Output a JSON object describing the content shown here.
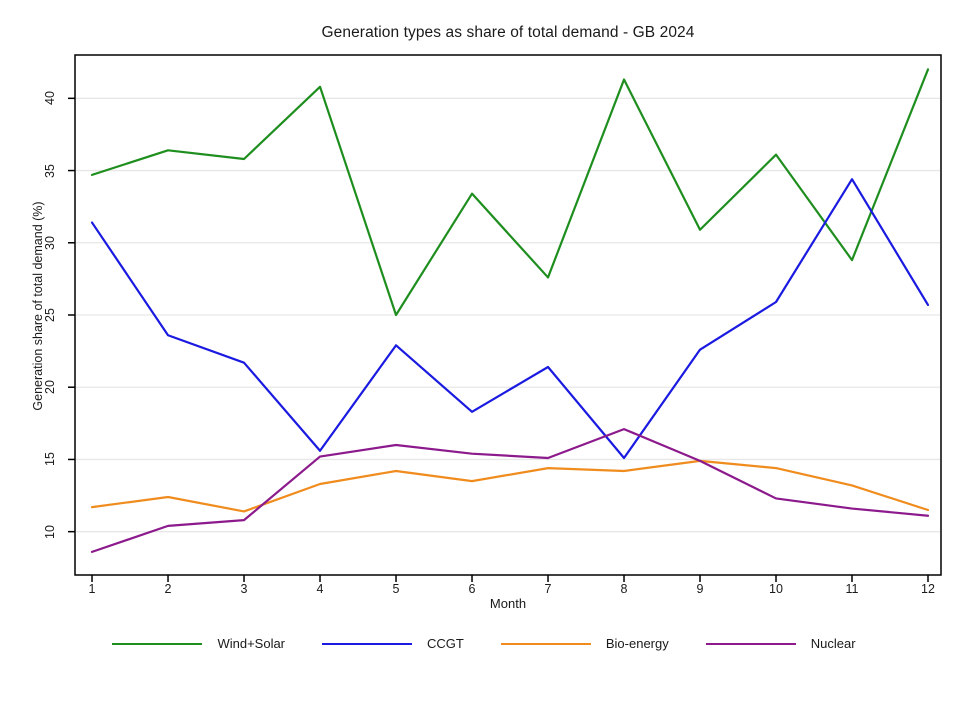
{
  "chart_data": {
    "type": "line",
    "title": "Generation types as share of total demand - GB 2024",
    "xlabel": "Month",
    "ylabel": "Generation share of total demand (%)",
    "x": [
      1,
      2,
      3,
      4,
      5,
      6,
      7,
      8,
      9,
      10,
      11,
      12
    ],
    "xticks": [
      "1",
      "2",
      "3",
      "4",
      "5",
      "6",
      "7",
      "8",
      "9",
      "10",
      "11",
      "12"
    ],
    "yticks": [
      "10",
      "15",
      "20",
      "25",
      "30",
      "35",
      "40"
    ],
    "ytick_values": [
      10,
      15,
      20,
      25,
      30,
      35,
      40
    ],
    "xlim": [
      0.776,
      12.171
    ],
    "ylim": [
      7.0,
      43.0
    ],
    "grid": "horizontal",
    "gridline_color": "#e7e7e7",
    "border_color": "#000000",
    "legend_position": "bottom",
    "series": [
      {
        "name": "Wind+Solar",
        "color": "#1e8e1e",
        "values": [
          34.7,
          36.4,
          35.8,
          40.8,
          25.0,
          33.4,
          27.6,
          41.3,
          30.9,
          36.1,
          28.8,
          42.0
        ]
      },
      {
        "name": "CCGT",
        "color": "#1a1ae0",
        "values": [
          31.4,
          23.6,
          21.7,
          15.6,
          22.9,
          18.3,
          21.4,
          15.1,
          22.6,
          25.9,
          34.4,
          25.7
        ]
      },
      {
        "name": "Bio-energy",
        "color": "#f08c1e",
        "values": [
          11.7,
          12.4,
          11.4,
          13.3,
          14.2,
          13.5,
          14.4,
          14.2,
          14.9,
          14.4,
          13.2,
          11.5
        ]
      },
      {
        "name": "Nuclear",
        "color": "#8c1a8c",
        "values": [
          8.6,
          10.4,
          10.8,
          15.2,
          16.0,
          15.4,
          15.1,
          17.1,
          14.9,
          12.3,
          11.6,
          11.1
        ]
      }
    ]
  }
}
